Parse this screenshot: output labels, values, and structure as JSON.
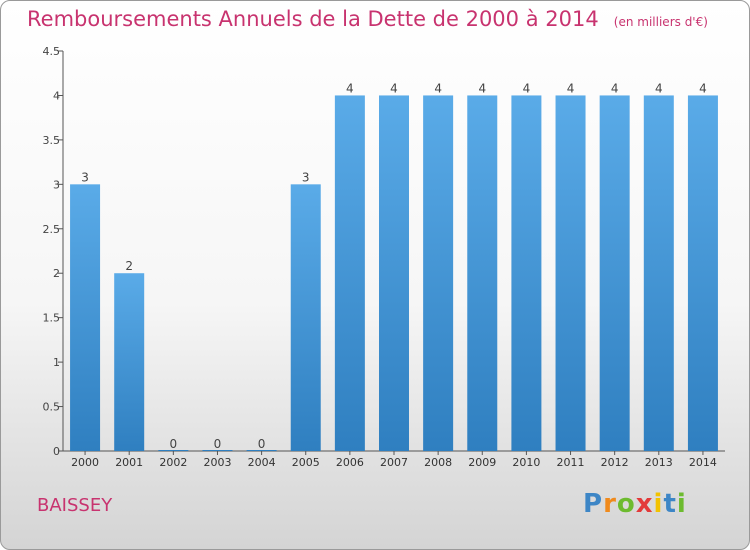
{
  "title": "Remboursements Annuels de la Dette de 2000 à 2014",
  "unit": "(en milliers d'€)",
  "location": "BAISSEY",
  "logo": {
    "letters": [
      "P",
      "r",
      "o",
      "x",
      "i",
      "t",
      "i"
    ],
    "colors": [
      "#3d86c6",
      "#f08a1c",
      "#6dbb2f",
      "#e33a3a",
      "#f2c200",
      "#3d86c6",
      "#6dbb2f"
    ]
  },
  "colors": {
    "bar_top": "#5aabe8",
    "bar_bottom": "#2f7fc0",
    "title": "#c8336f",
    "axis": "#555555"
  },
  "chart_data": {
    "type": "bar",
    "categories": [
      "2000",
      "2001",
      "2002",
      "2003",
      "2004",
      "2005",
      "2006",
      "2007",
      "2008",
      "2009",
      "2010",
      "2011",
      "2012",
      "2013",
      "2014"
    ],
    "values": [
      3,
      2,
      0,
      0,
      0,
      3,
      4,
      4,
      4,
      4,
      4,
      4,
      4,
      4,
      4
    ],
    "data_labels": [
      "3",
      "2",
      "0",
      "0",
      "0",
      "3",
      "4",
      "4",
      "4",
      "4",
      "4",
      "4",
      "4",
      "4",
      "4"
    ],
    "yticks": [
      0,
      0.5,
      1,
      1.5,
      2,
      2.5,
      3,
      3.5,
      4,
      4.5
    ],
    "ytick_labels": [
      "0",
      "0.5",
      "1",
      "1.5",
      "2",
      "2.5",
      "3",
      "3.5",
      "4",
      "4.5"
    ],
    "ylim": [
      0,
      4.5
    ],
    "title": "Remboursements Annuels de la Dette de 2000 à 2014",
    "xlabel": "",
    "ylabel": "",
    "grid": false,
    "legend": "none"
  }
}
